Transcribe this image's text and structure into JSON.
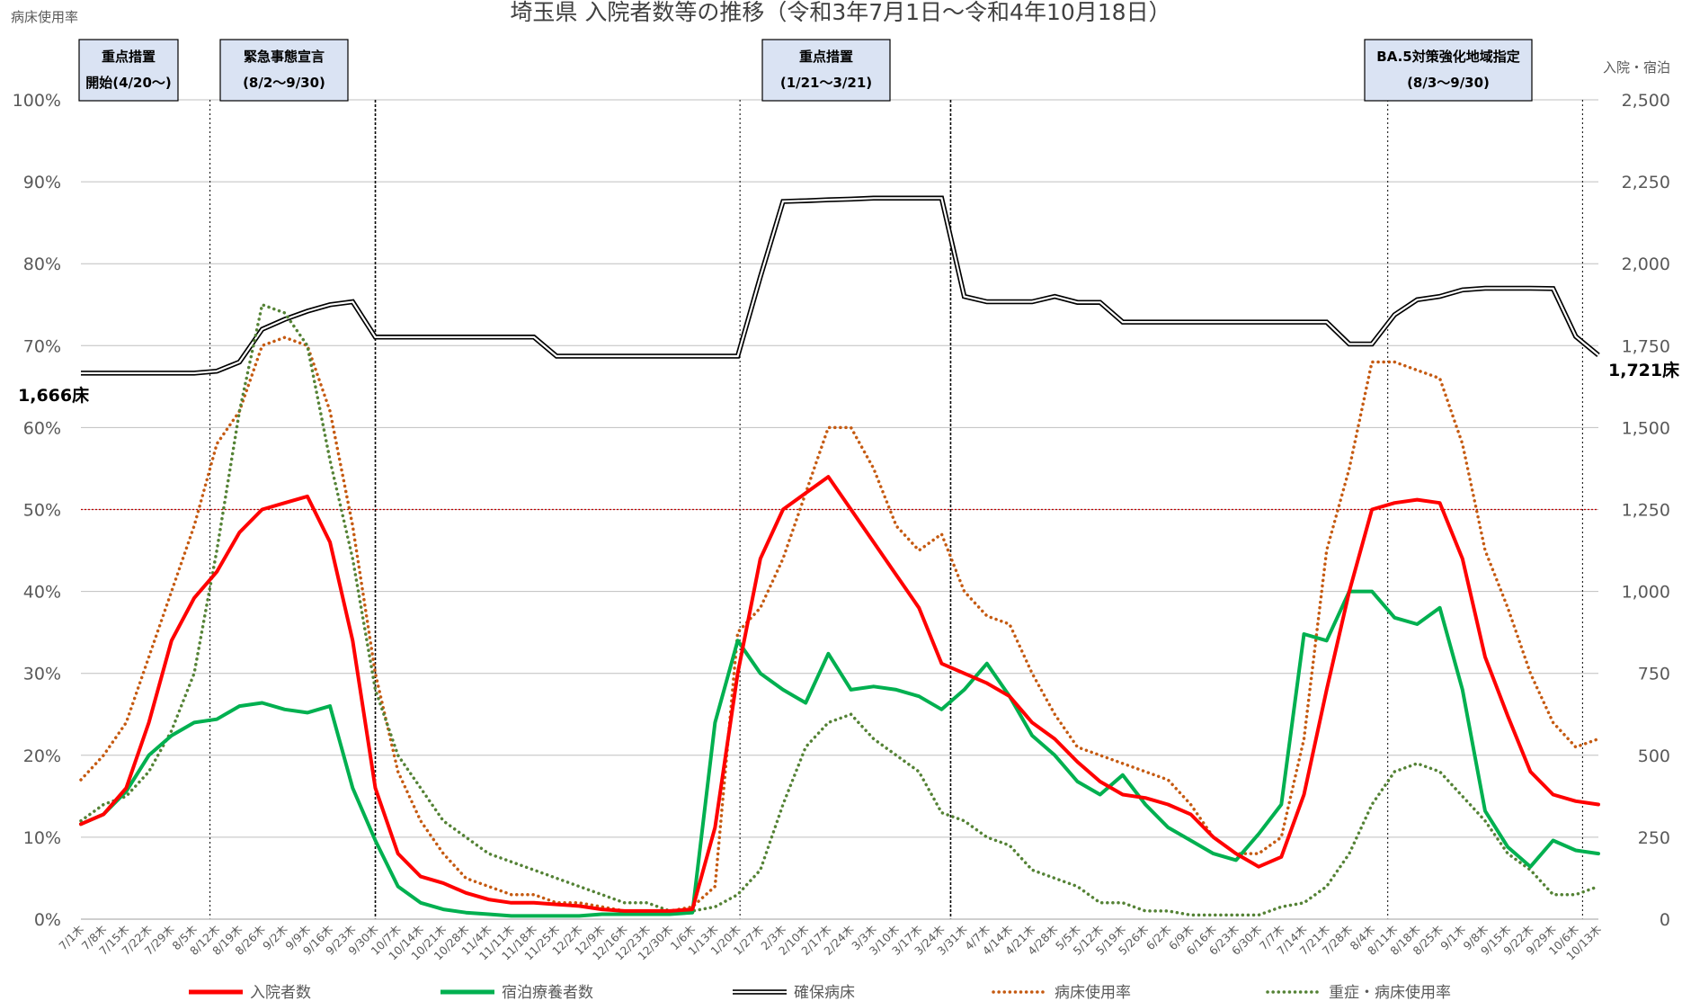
{
  "chart_data": {
    "type": "line",
    "title": "埼玉県 入院者数等の推移（令和3年7月1日～令和4年10月18日）",
    "y_left_label": "病床使用率",
    "y_right_label": "入院・宿泊",
    "y_left_ticks": [
      "0%",
      "10%",
      "20%",
      "30%",
      "40%",
      "50%",
      "60%",
      "70%",
      "80%",
      "90%",
      "100%"
    ],
    "y_right_ticks": [
      "0",
      "250",
      "500",
      "750",
      "1,000",
      "1,250",
      "1,500",
      "1,750",
      "2,000",
      "2,250",
      "2,500"
    ],
    "ylim_left": [
      0,
      100
    ],
    "ylim_right": [
      0,
      2500
    ],
    "x_categories": [
      "7/1木",
      "7/8木",
      "7/15木",
      "7/22木",
      "7/29木",
      "8/5木",
      "8/12木",
      "8/19木",
      "8/26木",
      "9/2木",
      "9/9木",
      "9/16木",
      "9/23木",
      "9/30木",
      "10/7木",
      "10/14木",
      "10/21木",
      "10/28木",
      "11/4木",
      "11/11木",
      "11/18木",
      "11/25木",
      "12/2木",
      "12/9木",
      "12/16木",
      "12/23木",
      "12/30木",
      "1/6木",
      "1/13木",
      "1/20木",
      "1/27木",
      "2/3木",
      "2/10木",
      "2/17木",
      "2/24木",
      "3/3木",
      "3/10木",
      "3/17木",
      "3/24木",
      "3/31木",
      "4/7木",
      "4/14木",
      "4/21木",
      "4/28木",
      "5/5木",
      "5/12木",
      "5/19木",
      "5/26木",
      "6/2木",
      "6/9木",
      "6/16木",
      "6/23木",
      "6/30木",
      "7/7木",
      "7/14木",
      "7/21木",
      "7/28木",
      "8/4木",
      "8/11木",
      "8/18木",
      "8/25木",
      "9/1木",
      "9/8木",
      "9/15木",
      "9/22木",
      "9/29木",
      "10/6木",
      "10/13木"
    ],
    "annotations": [
      {
        "line1": "重点措置",
        "line2": "開始(4/20～)",
        "start_week": 5.4
      },
      {
        "line1": "緊急事態宣言",
        "line2": "(8/2～9/30)",
        "start_week": 13.0
      },
      {
        "line1": "重点措置",
        "line2": "(1/21～3/21)",
        "start_week": 29.1
      },
      {
        "line1": "BA.5対策強化地域指定",
        "line2": "(8/3～9/30)",
        "start_week": 38.4
      }
    ],
    "bed_labels": {
      "start": "1,666床",
      "end": "1,721床"
    },
    "threshold_percent": 50,
    "series": [
      {
        "name": "入院者数",
        "axis": "right",
        "style": "solid",
        "color": "#ff0000",
        "values": [
          290,
          320,
          400,
          600,
          850,
          980,
          1060,
          1180,
          1250,
          1270,
          1290,
          1150,
          850,
          400,
          200,
          130,
          110,
          80,
          60,
          50,
          50,
          45,
          40,
          30,
          25,
          25,
          25,
          30,
          280,
          750,
          1100,
          1250,
          1300,
          1350,
          1250,
          1150,
          1050,
          950,
          780,
          750,
          720,
          680,
          600,
          550,
          480,
          420,
          380,
          370,
          350,
          320,
          250,
          200,
          160,
          190,
          380,
          700,
          1000,
          1250,
          1270,
          1280,
          1270,
          1100,
          800,
          620,
          450,
          380,
          360,
          350
        ]
      },
      {
        "name": "宿泊療養者数",
        "axis": "right",
        "style": "solid",
        "color": "#00b050",
        "values": [
          290,
          320,
          390,
          500,
          560,
          600,
          610,
          650,
          660,
          640,
          630,
          650,
          400,
          240,
          100,
          50,
          30,
          20,
          15,
          10,
          10,
          10,
          10,
          15,
          15,
          15,
          15,
          20,
          600,
          850,
          750,
          700,
          660,
          810,
          700,
          710,
          700,
          680,
          640,
          700,
          780,
          680,
          560,
          500,
          420,
          380,
          440,
          350,
          280,
          240,
          200,
          180,
          260,
          350,
          870,
          850,
          1000,
          1000,
          920,
          900,
          950,
          700,
          330,
          220,
          160,
          240,
          210,
          200
        ]
      },
      {
        "name": "確保病床",
        "axis": "right",
        "style": "double",
        "color": "#000000",
        "values": [
          1666,
          1666,
          1666,
          1666,
          1666,
          1666,
          1672,
          1700,
          1800,
          1830,
          1855,
          1875,
          1884,
          1776,
          1776,
          1776,
          1776,
          1776,
          1776,
          1776,
          1776,
          1718,
          1718,
          1718,
          1718,
          1718,
          1718,
          1718,
          1718,
          1718,
          1960,
          2190,
          2192,
          2195,
          2197,
          2200,
          2200,
          2200,
          2200,
          1900,
          1884,
          1884,
          1884,
          1900,
          1882,
          1882,
          1822,
          1822,
          1822,
          1822,
          1822,
          1822,
          1822,
          1822,
          1822,
          1822,
          1755,
          1755,
          1844,
          1890,
          1900,
          1920,
          1925,
          1925,
          1925,
          1924,
          1778,
          1721
        ]
      },
      {
        "name": "病床使用率",
        "axis": "left",
        "style": "dotted",
        "color": "#c55a11",
        "values": [
          17,
          20,
          24,
          32,
          40,
          48,
          58,
          62,
          70,
          71,
          70,
          62,
          48,
          30,
          18,
          12,
          8,
          5,
          4,
          3,
          3,
          2,
          2,
          1.5,
          1,
          1,
          1,
          1.5,
          4,
          35,
          38,
          44,
          52,
          60,
          60,
          55,
          48,
          45,
          47,
          40,
          37,
          36,
          30,
          25,
          21,
          20,
          19,
          18,
          17,
          14,
          10,
          8,
          8,
          10,
          22,
          45,
          55,
          68,
          68,
          67,
          66,
          58,
          45,
          38,
          30,
          24,
          21,
          22
        ]
      },
      {
        "name": "重症・病床使用率",
        "axis": "left",
        "style": "dotted",
        "color": "#548235",
        "values": [
          12,
          14,
          15,
          18,
          23,
          30,
          45,
          62,
          75,
          74,
          70,
          56,
          44,
          28,
          20,
          16,
          12,
          10,
          8,
          7,
          6,
          5,
          4,
          3,
          2,
          2,
          1,
          1,
          1.5,
          3,
          6,
          14,
          21,
          24,
          25,
          22,
          20,
          18,
          13,
          12,
          10,
          9,
          6,
          5,
          4,
          2,
          2,
          1,
          1,
          0.5,
          0.5,
          0.5,
          0.5,
          1.5,
          2,
          4,
          8,
          14,
          18,
          19,
          18,
          15,
          12,
          8,
          6,
          3,
          3,
          4
        ]
      }
    ]
  },
  "legend": [
    {
      "label": "入院者数",
      "style": "solid",
      "color": "#ff0000"
    },
    {
      "label": "宿泊療養者数",
      "style": "solid",
      "color": "#00b050"
    },
    {
      "label": "確保病床",
      "style": "double",
      "color": "#000000"
    },
    {
      "label": "病床使用率",
      "style": "dotted",
      "color": "#c55a11"
    },
    {
      "label": "重症・病床使用率",
      "style": "dotted",
      "color": "#548235"
    }
  ],
  "colors": {
    "threshold": "#c00000",
    "annotation_fill": "#dae3f3",
    "grid": "#bfbfbf"
  }
}
